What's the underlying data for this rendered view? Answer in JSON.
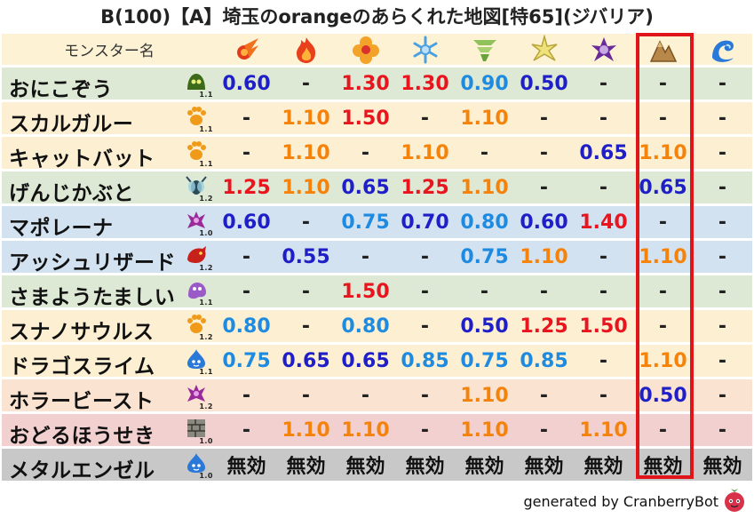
{
  "title": "B(100)【A】埼玉のorangeのあらくれた地図[特65](ジバリア)",
  "header": {
    "name_label": "モンスター名",
    "element_icons": [
      "fire-ball-icon",
      "flame-icon",
      "explosion-icon",
      "ice-icon",
      "wind-icon",
      "lightning-icon",
      "darkness-icon",
      "earth-icon",
      "water-wave-icon"
    ]
  },
  "highlight_column": 7,
  "rows": [
    {
      "name": "おにこぞう",
      "icon": "slime-green-icon",
      "level": "1.1",
      "bg": "#dde9d4",
      "values": [
        {
          "t": "0.60",
          "c": "blue"
        },
        {
          "t": "-",
          "c": "dash"
        },
        {
          "t": "1.30",
          "c": "red"
        },
        {
          "t": "1.30",
          "c": "red"
        },
        {
          "t": "0.90",
          "c": "lblue"
        },
        {
          "t": "0.50",
          "c": "blue"
        },
        {
          "t": "-",
          "c": "dash"
        },
        {
          "t": "-",
          "c": "dash"
        },
        {
          "t": "-",
          "c": "dash"
        }
      ]
    },
    {
      "name": "スカルガルー",
      "icon": "paw-icon",
      "level": "1.1",
      "bg": "#fdf0d2",
      "values": [
        {
          "t": "-",
          "c": "dash"
        },
        {
          "t": "1.10",
          "c": "orange"
        },
        {
          "t": "1.50",
          "c": "red"
        },
        {
          "t": "-",
          "c": "dash"
        },
        {
          "t": "1.10",
          "c": "orange"
        },
        {
          "t": "-",
          "c": "dash"
        },
        {
          "t": "-",
          "c": "dash"
        },
        {
          "t": "-",
          "c": "dash"
        },
        {
          "t": "-",
          "c": "dash"
        }
      ]
    },
    {
      "name": "キャットバット",
      "icon": "paw-icon",
      "level": "1.1",
      "bg": "#fdf0d2",
      "values": [
        {
          "t": "-",
          "c": "dash"
        },
        {
          "t": "1.10",
          "c": "orange"
        },
        {
          "t": "-",
          "c": "dash"
        },
        {
          "t": "1.10",
          "c": "orange"
        },
        {
          "t": "-",
          "c": "dash"
        },
        {
          "t": "-",
          "c": "dash"
        },
        {
          "t": "0.65",
          "c": "blue"
        },
        {
          "t": "1.10",
          "c": "orange"
        },
        {
          "t": "-",
          "c": "dash"
        }
      ]
    },
    {
      "name": "げんじかぶと",
      "icon": "insect-icon",
      "level": "1.2",
      "bg": "#dde9d4",
      "values": [
        {
          "t": "1.25",
          "c": "red"
        },
        {
          "t": "1.10",
          "c": "orange"
        },
        {
          "t": "0.65",
          "c": "blue"
        },
        {
          "t": "1.25",
          "c": "red"
        },
        {
          "t": "1.10",
          "c": "orange"
        },
        {
          "t": "-",
          "c": "dash"
        },
        {
          "t": "-",
          "c": "dash"
        },
        {
          "t": "0.65",
          "c": "blue"
        },
        {
          "t": "-",
          "c": "dash"
        }
      ]
    },
    {
      "name": "マポレーナ",
      "icon": "demon-purple-icon",
      "level": "1.0",
      "bg": "#d3e2f1",
      "values": [
        {
          "t": "0.60",
          "c": "blue"
        },
        {
          "t": "-",
          "c": "dash"
        },
        {
          "t": "0.75",
          "c": "lblue"
        },
        {
          "t": "0.70",
          "c": "blue"
        },
        {
          "t": "0.80",
          "c": "lblue"
        },
        {
          "t": "0.60",
          "c": "blue"
        },
        {
          "t": "1.40",
          "c": "red"
        },
        {
          "t": "-",
          "c": "dash"
        },
        {
          "t": "-",
          "c": "dash"
        }
      ]
    },
    {
      "name": "アッシュリザード",
      "icon": "dragon-red-icon",
      "level": "1.2",
      "bg": "#d3e2f1",
      "values": [
        {
          "t": "-",
          "c": "dash"
        },
        {
          "t": "0.55",
          "c": "blue"
        },
        {
          "t": "-",
          "c": "dash"
        },
        {
          "t": "-",
          "c": "dash"
        },
        {
          "t": "0.75",
          "c": "lblue"
        },
        {
          "t": "1.10",
          "c": "orange"
        },
        {
          "t": "-",
          "c": "dash"
        },
        {
          "t": "1.10",
          "c": "orange"
        },
        {
          "t": "-",
          "c": "dash"
        }
      ]
    },
    {
      "name": "さまようたましい",
      "icon": "ghost-purple-icon",
      "level": "1.1",
      "bg": "#dde9d4",
      "values": [
        {
          "t": "-",
          "c": "dash"
        },
        {
          "t": "-",
          "c": "dash"
        },
        {
          "t": "1.50",
          "c": "red"
        },
        {
          "t": "-",
          "c": "dash"
        },
        {
          "t": "-",
          "c": "dash"
        },
        {
          "t": "-",
          "c": "dash"
        },
        {
          "t": "-",
          "c": "dash"
        },
        {
          "t": "-",
          "c": "dash"
        },
        {
          "t": "-",
          "c": "dash"
        }
      ]
    },
    {
      "name": "スナノサウルス",
      "icon": "paw-icon",
      "level": "1.2",
      "bg": "#fdf0d2",
      "values": [
        {
          "t": "0.80",
          "c": "lblue"
        },
        {
          "t": "-",
          "c": "dash"
        },
        {
          "t": "0.80",
          "c": "lblue"
        },
        {
          "t": "-",
          "c": "dash"
        },
        {
          "t": "0.50",
          "c": "blue"
        },
        {
          "t": "1.25",
          "c": "red"
        },
        {
          "t": "1.50",
          "c": "red"
        },
        {
          "t": "-",
          "c": "dash"
        },
        {
          "t": "-",
          "c": "dash"
        }
      ]
    },
    {
      "name": "ドラゴスライム",
      "icon": "slime-blue-icon",
      "level": "1.1",
      "bg": "#fdf0d2",
      "values": [
        {
          "t": "0.75",
          "c": "lblue"
        },
        {
          "t": "0.65",
          "c": "blue"
        },
        {
          "t": "0.65",
          "c": "blue"
        },
        {
          "t": "0.85",
          "c": "lblue"
        },
        {
          "t": "0.75",
          "c": "lblue"
        },
        {
          "t": "0.85",
          "c": "lblue"
        },
        {
          "t": "-",
          "c": "dash"
        },
        {
          "t": "1.10",
          "c": "orange"
        },
        {
          "t": "-",
          "c": "dash"
        }
      ]
    },
    {
      "name": "ホラービースト",
      "icon": "demon-purple-icon",
      "level": "1.2",
      "bg": "#fbe3d2",
      "values": [
        {
          "t": "-",
          "c": "dash"
        },
        {
          "t": "-",
          "c": "dash"
        },
        {
          "t": "-",
          "c": "dash"
        },
        {
          "t": "-",
          "c": "dash"
        },
        {
          "t": "1.10",
          "c": "orange"
        },
        {
          "t": "-",
          "c": "dash"
        },
        {
          "t": "-",
          "c": "dash"
        },
        {
          "t": "0.50",
          "c": "blue"
        },
        {
          "t": "-",
          "c": "dash"
        }
      ]
    },
    {
      "name": "おどるほうせき",
      "icon": "brick-icon",
      "level": "1.0",
      "bg": "#f2d0cf",
      "values": [
        {
          "t": "-",
          "c": "dash"
        },
        {
          "t": "1.10",
          "c": "orange"
        },
        {
          "t": "1.10",
          "c": "orange"
        },
        {
          "t": "-",
          "c": "dash"
        },
        {
          "t": "1.10",
          "c": "orange"
        },
        {
          "t": "-",
          "c": "dash"
        },
        {
          "t": "1.10",
          "c": "orange"
        },
        {
          "t": "-",
          "c": "dash"
        },
        {
          "t": "-",
          "c": "dash"
        }
      ]
    },
    {
      "name": "メタルエンゼル",
      "icon": "slime-blue-icon",
      "level": "1.0",
      "bg": "#c8c8c8",
      "values": [
        {
          "t": "無効",
          "c": "null"
        },
        {
          "t": "無効",
          "c": "null"
        },
        {
          "t": "無効",
          "c": "null"
        },
        {
          "t": "無効",
          "c": "null"
        },
        {
          "t": "無効",
          "c": "null"
        },
        {
          "t": "無効",
          "c": "null"
        },
        {
          "t": "無効",
          "c": "null"
        },
        {
          "t": "無効",
          "c": "null"
        },
        {
          "t": "無効",
          "c": "null"
        }
      ]
    }
  ],
  "footer": {
    "credit": "generated by CranberryBot",
    "icon": "cranberry-icon"
  },
  "colors": {
    "header_bg": "#fdf3d4",
    "highlight": "#e0151a",
    "red": "#e8141e",
    "orange": "#f5820a",
    "blue": "#1f1fc8",
    "light_blue": "#1e8be0"
  }
}
